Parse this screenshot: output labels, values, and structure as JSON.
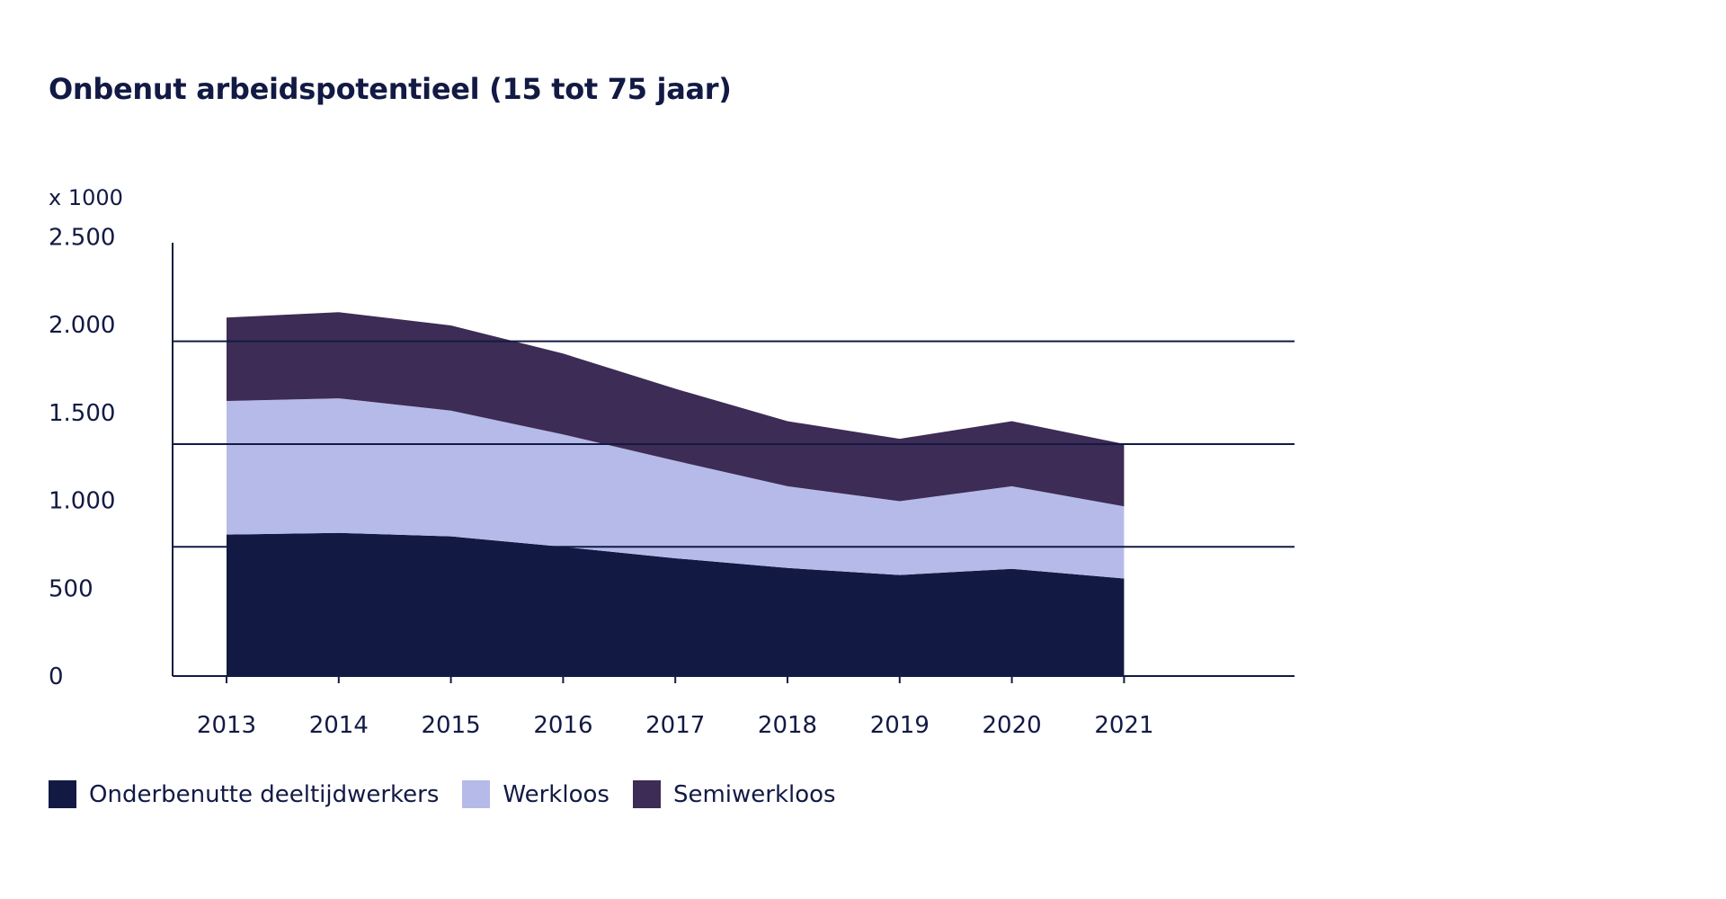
{
  "title": "Onbenut arbeidspotentieel (15 tot 75 jaar)",
  "unit_label": "x 1000",
  "colors": {
    "axis": "#121a44",
    "text": "#121a44"
  },
  "chart_data": {
    "type": "area",
    "stacked": true,
    "title": "Onbenut arbeidspotentieel (15 tot 75 jaar)",
    "ylabel": "x 1000",
    "ylim": [
      0,
      2500
    ],
    "yticks": [
      0,
      500,
      1000,
      1500,
      2000,
      2500
    ],
    "ytick_labels": [
      "0",
      "500",
      "1.000",
      "1.500",
      "2.000",
      "2.500"
    ],
    "x": [
      "2013",
      "2014",
      "2015",
      "2016",
      "2017",
      "2018",
      "2019",
      "2020",
      "2021"
    ],
    "gridlines": [
      735,
      1320,
      1905
    ],
    "series": [
      {
        "name": "Onderbenutte deeltijdwerkers",
        "color": "#121a44",
        "values": [
          805,
          815,
          795,
          735,
          670,
          615,
          575,
          610,
          555
        ]
      },
      {
        "name": "Werkloos",
        "color": "#b6bae8",
        "values": [
          760,
          765,
          715,
          640,
          555,
          465,
          420,
          470,
          410
        ]
      },
      {
        "name": "Semiwerkloos",
        "color": "#3d2c55",
        "values": [
          475,
          490,
          485,
          460,
          410,
          370,
          355,
          370,
          355
        ]
      }
    ],
    "legend_position": "bottom-left"
  }
}
